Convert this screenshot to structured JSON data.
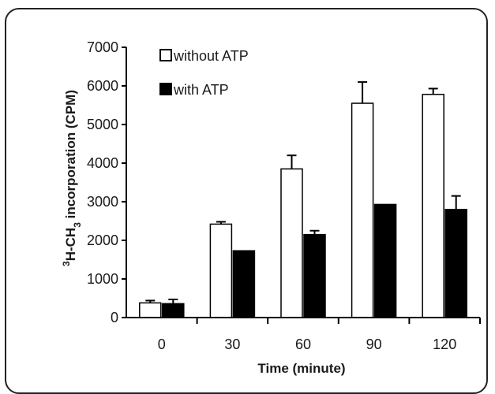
{
  "chart_data": {
    "type": "bar",
    "categories": [
      "0",
      "30",
      "60",
      "90",
      "120"
    ],
    "series": [
      {
        "name": "without ATP",
        "values": [
          380,
          2420,
          3850,
          5550,
          5780
        ],
        "errors": [
          60,
          60,
          350,
          550,
          150
        ],
        "fill": "#ffffff"
      },
      {
        "name": "with ATP",
        "values": [
          360,
          1730,
          2150,
          2930,
          2800
        ],
        "errors": [
          110,
          0,
          100,
          0,
          350
        ],
        "fill": "#000000"
      }
    ],
    "xlabel": "Time (minute)",
    "ylabel_sup": "3",
    "ylabel_main": "H-CH",
    "ylabel_sub": "3",
    "ylabel_rest": " incorporation (CPM)",
    "ylim": [
      0,
      7000
    ],
    "yticks": [
      "0",
      "1000",
      "2000",
      "3000",
      "4000",
      "5000",
      "6000",
      "7000"
    ],
    "legend_position": "top-left",
    "grid": false
  }
}
